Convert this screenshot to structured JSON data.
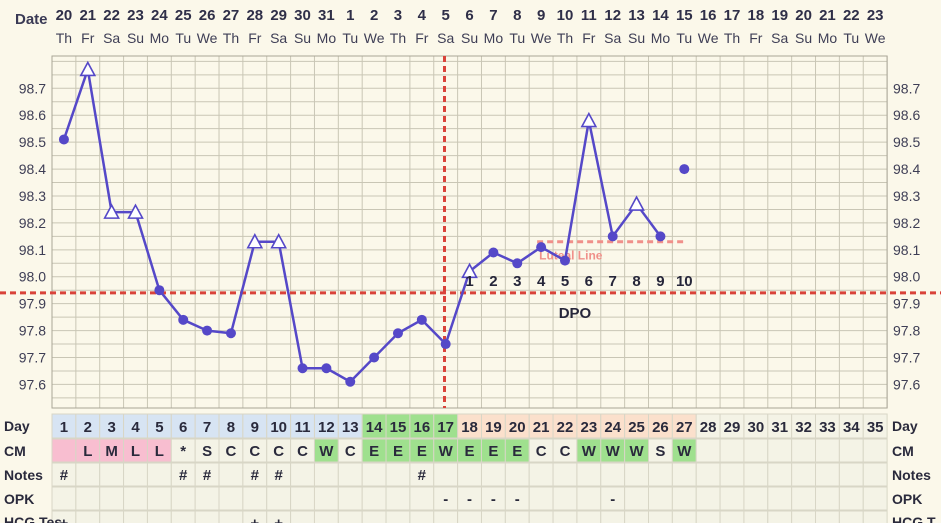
{
  "chart_data": {
    "type": "line",
    "row_labels": {
      "date": "Date",
      "day": "Day",
      "cm": "CM",
      "notes": "Notes",
      "opk": "OPK",
      "hcg_left": "HCG Tes",
      "hcg_right": "HCG T"
    },
    "dates": [
      "20",
      "21",
      "22",
      "23",
      "24",
      "25",
      "26",
      "27",
      "28",
      "29",
      "30",
      "31",
      "1",
      "2",
      "3",
      "4",
      "5",
      "6",
      "7",
      "8",
      "9",
      "10",
      "11",
      "12",
      "13",
      "14",
      "15",
      "16",
      "17",
      "18",
      "19",
      "20",
      "21",
      "22",
      "23"
    ],
    "weekdays": [
      "Th",
      "Fr",
      "Sa",
      "Su",
      "Mo",
      "Tu",
      "We",
      "Th",
      "Fr",
      "Sa",
      "Su",
      "Mo",
      "Tu",
      "We",
      "Th",
      "Fr",
      "Sa",
      "Su",
      "Mo",
      "Tu",
      "We",
      "Th",
      "Fr",
      "Sa",
      "Su",
      "Mo",
      "Tu",
      "We",
      "Th",
      "Fr",
      "Sa",
      "Su",
      "Mo",
      "Tu",
      "We"
    ],
    "cycle_days": [
      "1",
      "2",
      "3",
      "4",
      "5",
      "6",
      "7",
      "8",
      "9",
      "10",
      "11",
      "12",
      "13",
      "14",
      "15",
      "16",
      "17",
      "18",
      "19",
      "20",
      "21",
      "22",
      "23",
      "24",
      "25",
      "26",
      "27",
      "28",
      "29",
      "30",
      "31",
      "32",
      "33",
      "34",
      "35"
    ],
    "y_ticks": [
      "98.7",
      "98.6",
      "98.5",
      "98.4",
      "98.3",
      "98.2",
      "98.1",
      "98.0",
      "97.9",
      "97.8",
      "97.7",
      "97.6"
    ],
    "y_range": [
      97.51,
      98.82
    ],
    "temperatures": [
      98.51,
      98.77,
      98.24,
      98.24,
      97.95,
      97.84,
      97.8,
      97.79,
      98.13,
      98.13,
      97.66,
      97.66,
      97.61,
      97.7,
      97.79,
      97.84,
      97.75,
      98.02,
      98.09,
      98.05,
      98.11,
      98.06,
      98.58,
      98.15,
      98.27,
      98.15,
      null,
      null,
      null,
      null,
      null,
      null,
      null,
      null,
      null
    ],
    "markers": [
      "dot",
      "triangle",
      "triangle",
      "triangle",
      "dot",
      "dot",
      "dot",
      "dot",
      "triangle",
      "triangle",
      "dot",
      "dot",
      "dot",
      "dot",
      "dot",
      "dot",
      "dot",
      "triangle",
      "dot",
      "dot",
      "dot",
      "dot",
      "triangle",
      "dot",
      "triangle",
      "dot",
      "",
      "",
      "",
      "",
      "",
      "",
      "",
      "",
      ""
    ],
    "extra_point": {
      "day": 27,
      "temp": 98.4
    },
    "coverline": 97.94,
    "ovulation_day": 17,
    "luteal_line": {
      "temp": 98.13,
      "from_day": 21,
      "to_day": 27,
      "label": "Luteal Line"
    },
    "dpo_numbers": [
      "1",
      "2",
      "3",
      "4",
      "5",
      "6",
      "7",
      "8",
      "9",
      "10"
    ],
    "dpo_label": "DPO",
    "cm": [
      "",
      "L",
      "M",
      "L",
      "L",
      "*",
      "S",
      "C",
      "C",
      "C",
      "C",
      "W",
      "C",
      "E",
      "E",
      "E",
      "W",
      "E",
      "E",
      "E",
      "C",
      "C",
      "W",
      "W",
      "W",
      "S",
      "W",
      "",
      "",
      "",
      "",
      "",
      "",
      "",
      ""
    ],
    "notes": [
      "#",
      "",
      "",
      "",
      "",
      "#",
      "#",
      "",
      "#",
      "#",
      "",
      "",
      "",
      "",
      "",
      "#",
      "",
      "",
      "",
      "",
      "",
      "",
      "",
      "",
      "",
      "",
      "",
      "",
      "",
      "",
      "",
      "",
      "",
      "",
      ""
    ],
    "opk": [
      "",
      "",
      "",
      "",
      "",
      "",
      "",
      "",
      "",
      "",
      "",
      "",
      "",
      "",
      "",
      "",
      "-",
      "-",
      "-",
      "-",
      "",
      "",
      "",
      "-",
      "",
      "",
      "",
      "",
      "",
      "",
      "",
      "",
      "",
      "",
      ""
    ],
    "hcg": [
      "+",
      "",
      "",
      "",
      "",
      "",
      "",
      "",
      "+",
      "+",
      "",
      "-",
      "-",
      "",
      "",
      "-",
      "",
      "",
      "",
      "",
      "",
      "",
      "",
      "",
      "",
      "",
      "",
      "",
      "",
      "",
      "",
      "",
      "",
      "",
      ""
    ],
    "colors": {
      "line": "#5548c8",
      "dashed": "#d9433a",
      "luteal": "#f0908a",
      "grid": "#c9c6b5",
      "cell_green": "#9fe08e",
      "cell_pink": "#f8bed0",
      "cell_peach": "#fbe0cc",
      "cell_blue": "#d7e4f3",
      "cell_empty": "#f4f3e6"
    }
  }
}
